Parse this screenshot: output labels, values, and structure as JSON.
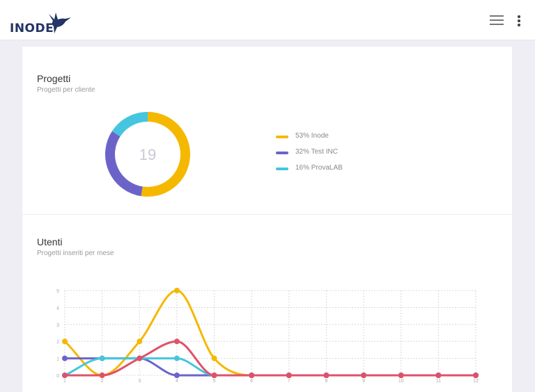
{
  "header": {
    "logo_text": "INODE",
    "brand_color": "#233466",
    "menu_icon": "hamburger-icon",
    "more_icon": "more-vertical-icon"
  },
  "projects": {
    "title": "Progetti",
    "subtitle": "Progetti per cliente"
  },
  "users": {
    "title": "Utenti",
    "subtitle": "Progetti inseriti per mese"
  },
  "chart_data": [
    {
      "type": "pie",
      "variant": "donut",
      "center_label": "19",
      "slices": [
        {
          "label": "53% Inode",
          "value": 53,
          "color": "#f5b800"
        },
        {
          "label": "32% Test INC",
          "value": 32,
          "color": "#6c63c9"
        },
        {
          "label": "16% ProvaLAB",
          "value": 16,
          "color": "#45c6de"
        }
      ],
      "legend_position": "right"
    },
    {
      "type": "line",
      "smooth": true,
      "x": [
        1,
        2,
        3,
        4,
        5,
        6,
        7,
        8,
        9,
        10,
        11,
        12
      ],
      "ylim": [
        0,
        5
      ],
      "yticks": [
        0,
        1,
        2,
        3,
        4,
        5
      ],
      "grid": true,
      "grid_style": "dotted",
      "series": [
        {
          "values": [
            2,
            0,
            2,
            5,
            1,
            0,
            0,
            0,
            0,
            0,
            0,
            0
          ],
          "color": "#f5b800"
        },
        {
          "values": [
            1,
            1,
            1,
            0,
            0,
            0,
            0,
            0,
            0,
            0,
            0,
            0
          ],
          "color": "#6c63c9"
        },
        {
          "values": [
            0,
            1,
            1,
            1,
            0,
            0,
            0,
            0,
            0,
            0,
            0,
            0
          ],
          "color": "#45c6de"
        },
        {
          "values": [
            0,
            0,
            1,
            2,
            0,
            0,
            0,
            0,
            0,
            0,
            0,
            0
          ],
          "color": "#e05168"
        }
      ]
    }
  ]
}
